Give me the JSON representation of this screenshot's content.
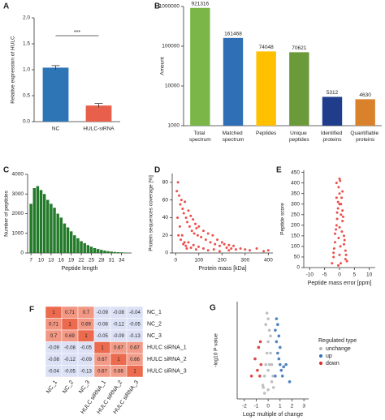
{
  "chart_data": [
    {
      "type": "bar",
      "panel_label": "A",
      "ylabel": "Relative expression of HULC",
      "categories": [
        "NC",
        "HULC-siRNA"
      ],
      "values": [
        1.04,
        0.31
      ],
      "errors": [
        0.04,
        0.04
      ],
      "colors": [
        "#2e75b6",
        "#e8604c"
      ],
      "ylim": [
        0,
        2
      ],
      "yticks": [
        {
          "value": 0,
          "label": "0.0"
        },
        {
          "value": 0.5,
          "label": "0.5"
        },
        {
          "value": 1,
          "label": "1.0"
        },
        {
          "value": 1.5,
          "label": "1.5"
        },
        {
          "value": 2,
          "label": "2.0"
        }
      ],
      "annotation": "***"
    },
    {
      "type": "bar",
      "panel_label": "B",
      "ylabel": "Amount",
      "log_scale": true,
      "categories": [
        "Total spectrum",
        "Matched spectrum",
        "Peptides",
        "Unique peptides",
        "Identified proteins",
        "Quantifiable proteins"
      ],
      "values": [
        921316,
        161468,
        74048,
        70621,
        5312,
        4630
      ],
      "colors": [
        "#7ab648",
        "#2f6fb5",
        "#ffc000",
        "#6b9a3a",
        "#1f3d8a",
        "#d9822b"
      ],
      "ylim": [
        1000,
        1000000
      ],
      "yticks": [
        1000,
        10000,
        100000,
        1000000
      ]
    },
    {
      "type": "bar",
      "panel_label": "C",
      "xlabel": "Peptide length",
      "ylabel": "Number of peptides",
      "color": "#237a2a",
      "x": [
        7,
        8,
        9,
        10,
        11,
        12,
        13,
        14,
        15,
        16,
        17,
        18,
        19,
        20,
        21,
        22,
        23,
        24,
        25,
        26,
        27,
        28,
        29,
        30,
        31,
        32,
        33,
        34,
        35,
        36
      ],
      "values": [
        2500,
        3300,
        3400,
        3200,
        3000,
        2700,
        2500,
        2300,
        2000,
        1800,
        1500,
        1300,
        1100,
        900,
        750,
        600,
        500,
        400,
        320,
        250,
        200,
        160,
        120,
        90,
        70,
        50,
        40,
        30,
        20,
        10
      ],
      "xlim": [
        6,
        37
      ],
      "xticks": [
        7,
        10,
        13,
        16,
        19,
        22,
        25,
        28,
        31,
        34
      ],
      "ylim": [
        0,
        4000
      ],
      "yticks": [
        0,
        1000,
        2000,
        3000,
        4000
      ]
    },
    {
      "type": "scatter",
      "panel_label": "D",
      "xlabel": "Protein mass [kDa]",
      "ylabel": "Protein sequences coverage [%]",
      "color": "#e8302a",
      "x": [
        5,
        10,
        15,
        20,
        25,
        30,
        35,
        40,
        45,
        50,
        55,
        60,
        65,
        70,
        75,
        80,
        85,
        90,
        95,
        100,
        110,
        120,
        130,
        140,
        150,
        160,
        170,
        180,
        190,
        200,
        210,
        220,
        230,
        240,
        250,
        260,
        280,
        300,
        320,
        350,
        380,
        400,
        12,
        22,
        33,
        44,
        55,
        66,
        77,
        88,
        99,
        120,
        140,
        165,
        190,
        230,
        8,
        18,
        28,
        38,
        48
      ],
      "values": [
        70,
        80,
        65,
        55,
        60,
        50,
        45,
        58,
        40,
        35,
        48,
        30,
        42,
        25,
        38,
        22,
        33,
        28,
        20,
        30,
        18,
        25,
        15,
        22,
        12,
        20,
        10,
        15,
        8,
        12,
        10,
        6,
        9,
        5,
        8,
        4,
        5,
        4,
        3,
        5,
        2,
        3,
        20,
        15,
        10,
        8,
        12,
        6,
        9,
        4,
        7,
        5,
        3,
        4,
        2,
        3,
        40,
        30,
        20,
        12,
        5
      ],
      "xlim": [
        -15,
        420
      ],
      "xticks": [
        0,
        100,
        200,
        300,
        400
      ],
      "ylim": [
        0,
        90
      ],
      "yticks": [
        0,
        20,
        40,
        60,
        80
      ]
    },
    {
      "type": "scatter",
      "panel_label": "E",
      "xlabel": "Peptide mass error [ppm]",
      "ylabel": "Peptide score",
      "color": "#e8302a",
      "x": [
        -2,
        -1.5,
        -1,
        -0.5,
        0,
        0.5,
        1,
        1.5,
        2,
        2.5,
        -2.5,
        -1.8,
        -1.2,
        -0.8,
        -0.3,
        0.2,
        0.7,
        1.2,
        1.7,
        2.2,
        -1,
        0,
        1,
        -0.5,
        0.5,
        0,
        -1.5,
        1.5,
        -2,
        2,
        0.3,
        -0.3,
        0,
        0.8,
        -0.8,
        0,
        1,
        -1,
        0.4,
        -0.4
      ],
      "values": [
        50,
        120,
        200,
        280,
        350,
        300,
        220,
        150,
        80,
        30,
        20,
        90,
        180,
        260,
        380,
        410,
        330,
        240,
        130,
        60,
        400,
        420,
        360,
        310,
        250,
        190,
        160,
        110,
        70,
        40,
        100,
        140,
        60,
        170,
        230,
        300,
        270,
        330,
        20,
        10
      ],
      "xlim": [
        -12,
        12
      ],
      "xticks": [
        -10,
        -5,
        0,
        5,
        10
      ],
      "ylim": [
        0,
        460
      ],
      "yticks": [
        0,
        50,
        100,
        150,
        200,
        250,
        300,
        350,
        400,
        450
      ]
    },
    {
      "type": "heatmap",
      "panel_label": "F",
      "rows": [
        "NC_1",
        "NC_2",
        "NC_3",
        "HULC siRNA_1",
        "HULC siRNA_2",
        "HULC siRNA_3"
      ],
      "columns": [
        "NC_1",
        "NC_2",
        "NC_3",
        "HULC siRNA_1",
        "HULC siRNA_2",
        "HULC siRNA_3"
      ],
      "values": [
        [
          1,
          0.71,
          0.7,
          -0.09,
          -0.08,
          -0.04
        ],
        [
          0.71,
          1,
          0.69,
          -0.08,
          -0.12,
          -0.05
        ],
        [
          0.7,
          0.69,
          1,
          -0.05,
          -0.09,
          -0.13
        ],
        [
          -0.09,
          -0.08,
          -0.05,
          1,
          0.67,
          0.67
        ],
        [
          -0.08,
          -0.12,
          -0.09,
          0.67,
          1,
          0.66
        ],
        [
          -0.04,
          -0.05,
          -0.13,
          0.67,
          0.66,
          1
        ]
      ],
      "colors": {
        "low": "#dde1f5",
        "high": "#ec6a4e"
      }
    },
    {
      "type": "scatter",
      "panel_label": "G",
      "xlabel": "Log2 multiple of change",
      "ylabel": "-log10 P value",
      "legend_title": "Regulated type",
      "xlim": [
        -2.6,
        3.4
      ],
      "xticks": [
        -2,
        -1,
        0,
        1,
        2,
        3
      ],
      "ylim": [
        0,
        8.5
      ],
      "series": [
        {
          "name": "unchange",
          "color": "#b5b5b5",
          "x": [
            -0.4,
            -0.3,
            -0.2,
            -0.1,
            0,
            0.1,
            0.2,
            0.3,
            0.4,
            -0.3,
            0,
            0.3,
            -0.2,
            0.2,
            0,
            -0.1,
            0.1,
            0.45,
            -0.45,
            0
          ],
          "values": [
            1,
            2,
            3,
            4,
            5,
            6,
            4,
            3,
            2,
            0.5,
            0.8,
            1.5,
            6.5,
            5.5,
            7,
            7.5,
            3,
            1,
            1.2,
            2.5
          ]
        },
        {
          "name": "up",
          "color": "#2f6fb5",
          "x": [
            0.6,
            0.7,
            0.8,
            0.9,
            1.0,
            1.1,
            1.2,
            0.7,
            0.9,
            1.5,
            0.6,
            1.0,
            0.8,
            1.3,
            1.8
          ],
          "values": [
            6,
            5,
            4,
            3.5,
            3,
            2.5,
            2,
            7,
            5.5,
            3,
            2,
            4.5,
            6.5,
            2.8,
            1.5
          ]
        },
        {
          "name": "down",
          "color": "#d62728",
          "x": [
            -0.6,
            -0.7,
            -0.9,
            -1.1,
            -0.8,
            -1.4,
            -0.65
          ],
          "values": [
            3,
            2,
            2.5,
            3.5,
            4.5,
            2,
            5
          ]
        }
      ]
    }
  ]
}
